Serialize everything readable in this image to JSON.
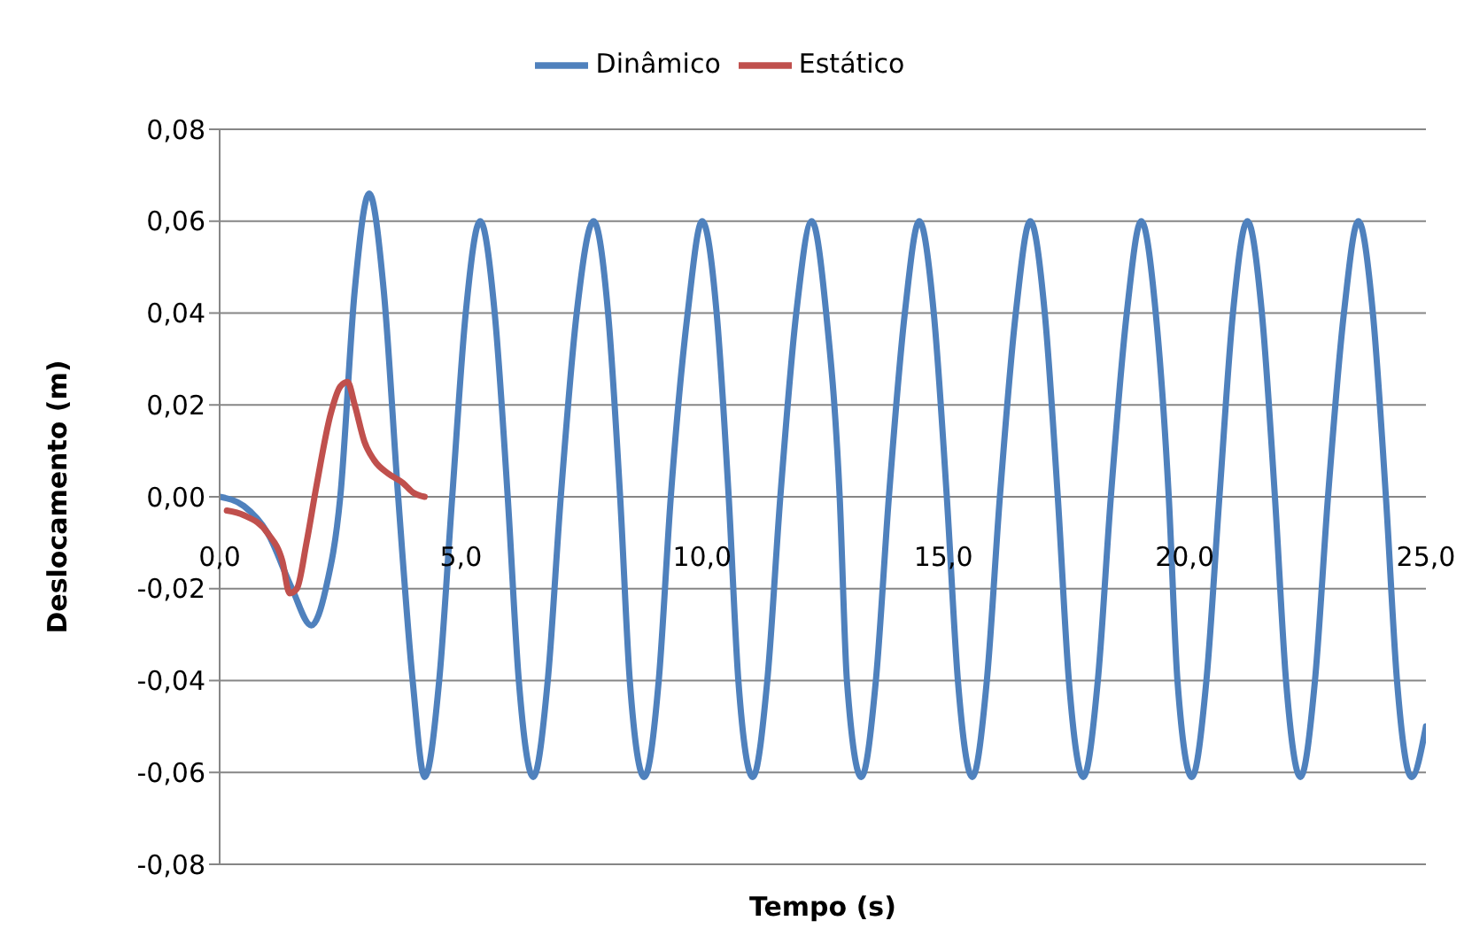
{
  "chart_data": {
    "type": "line",
    "xlabel": "Tempo (s)",
    "ylabel": "Deslocamento (m)",
    "xlim": [
      0,
      25
    ],
    "ylim": [
      -0.08,
      0.08
    ],
    "xticks": [
      {
        "value": 0,
        "label": "0,0"
      },
      {
        "value": 5,
        "label": "5,0"
      },
      {
        "value": 10,
        "label": "10,0"
      },
      {
        "value": 15,
        "label": "15,0"
      },
      {
        "value": 20,
        "label": "20,0"
      },
      {
        "value": 25,
        "label": "25,0"
      }
    ],
    "yticks": [
      {
        "value": -0.08,
        "label": "-0,08"
      },
      {
        "value": -0.06,
        "label": "-0,06"
      },
      {
        "value": -0.04,
        "label": "-0,04"
      },
      {
        "value": -0.02,
        "label": "-0,02"
      },
      {
        "value": 0,
        "label": "0,00"
      },
      {
        "value": 0.02,
        "label": "0,02"
      },
      {
        "value": 0.04,
        "label": "0,04"
      },
      {
        "value": 0.06,
        "label": "0,06"
      },
      {
        "value": 0.08,
        "label": "0,08"
      }
    ],
    "grid": "y",
    "legend": "top",
    "marker": "none",
    "line_style": "solid",
    "series": [
      {
        "name": "Dinâmico",
        "color": "#4f81bd",
        "x": [
          0,
          0.5,
          1.0,
          1.5,
          1.9,
          2.2,
          2.5,
          2.8,
          3.1,
          3.4,
          3.7,
          4.0,
          4.25,
          4.55,
          4.82,
          5.1,
          5.4,
          5.7,
          5.97,
          6.2,
          6.5,
          6.8,
          7.07,
          7.4,
          7.75,
          8.05,
          8.3,
          8.5,
          8.8,
          9.1,
          9.35,
          9.7,
          10.0,
          10.3,
          10.55,
          10.75,
          11.05,
          11.35,
          11.62,
          11.95,
          12.27,
          12.57,
          12.85,
          13.0,
          13.3,
          13.6,
          13.87,
          14.2,
          14.5,
          14.8,
          15.07,
          15.3,
          15.6,
          15.9,
          16.17,
          16.5,
          16.8,
          17.1,
          17.37,
          17.6,
          17.9,
          18.2,
          18.47,
          18.8,
          19.1,
          19.4,
          19.67,
          19.85,
          20.15,
          20.45,
          20.72,
          21.0,
          21.3,
          21.6,
          21.87,
          22.1,
          22.4,
          22.7,
          22.97,
          23.3,
          23.6,
          23.9,
          24.17,
          24.4,
          24.7,
          25.0
        ],
        "values": [
          0,
          -0.002,
          -0.008,
          -0.02,
          -0.028,
          -0.02,
          0,
          0.045,
          0.066,
          0.045,
          0,
          -0.04,
          -0.061,
          -0.04,
          0,
          0.04,
          0.06,
          0.04,
          0,
          -0.04,
          -0.061,
          -0.04,
          0,
          0.04,
          0.06,
          0.04,
          0,
          -0.04,
          -0.061,
          -0.04,
          0,
          0.04,
          0.06,
          0.04,
          0,
          -0.04,
          -0.061,
          -0.04,
          0,
          0.04,
          0.06,
          0.04,
          0,
          -0.04,
          -0.061,
          -0.04,
          0,
          0.04,
          0.06,
          0.04,
          0,
          -0.04,
          -0.061,
          -0.04,
          0,
          0.04,
          0.06,
          0.04,
          0,
          -0.04,
          -0.061,
          -0.04,
          0,
          0.04,
          0.06,
          0.04,
          0,
          -0.04,
          -0.061,
          -0.04,
          0,
          0.04,
          0.06,
          0.04,
          0,
          -0.04,
          -0.061,
          -0.04,
          0,
          0.04,
          0.06,
          0.04,
          0,
          -0.04,
          -0.061,
          -0.05
        ]
      },
      {
        "name": "Estático",
        "color": "#c0504d",
        "x": [
          0.15,
          0.5,
          1.0,
          1.3,
          1.45,
          1.6,
          1.8,
          2.0,
          2.3,
          2.5,
          2.65,
          2.8,
          3.0,
          3.2,
          3.5,
          3.8,
          4.0,
          4.25
        ],
        "values": [
          -0.003,
          -0.004,
          -0.008,
          -0.014,
          -0.021,
          -0.02,
          -0.01,
          0.002,
          0.018,
          0.024,
          0.025,
          0.02,
          0.012,
          0.008,
          0.005,
          0.003,
          0.001,
          0
        ]
      }
    ]
  }
}
